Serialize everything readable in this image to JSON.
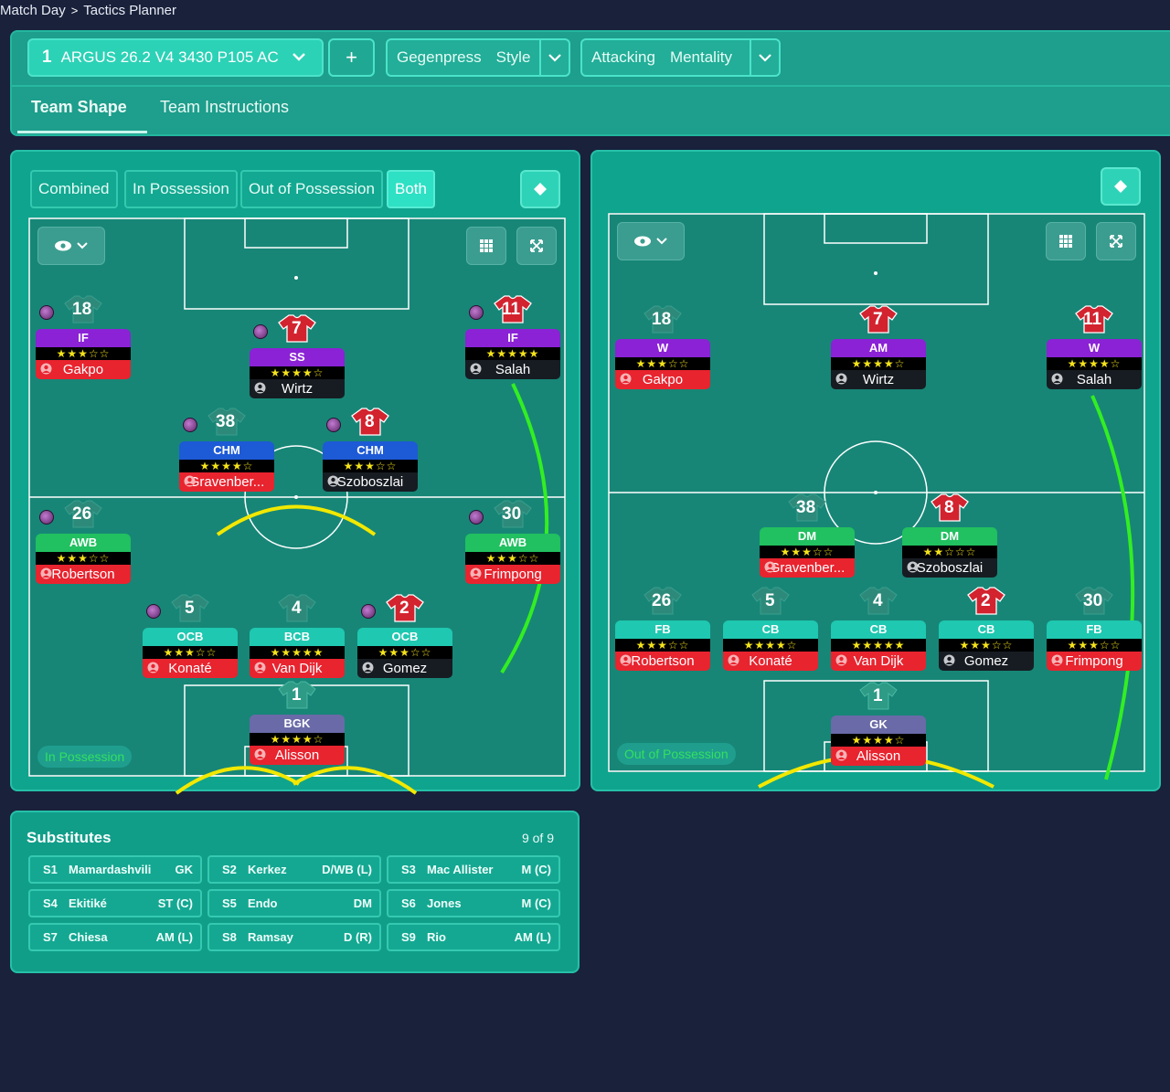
{
  "breadcrumb": {
    "parent": "Match Day",
    "current": "Tactics Planner"
  },
  "tactic": {
    "number": "1",
    "name": "ARGUS 26.2 V4 3430 P105 AC",
    "add_label": "+",
    "style_value": "Gegenpress",
    "style_label": "Style",
    "mentality_value": "Attacking",
    "mentality_label": "Mentality"
  },
  "tabs": [
    {
      "label": "Team Shape"
    },
    {
      "label": "Team Instructions"
    }
  ],
  "view_modes": [
    "Combined",
    "In Possession",
    "Out of Possession",
    "Both"
  ],
  "selected_view": "Both",
  "left_pitch": {
    "phase_label": "In Possession",
    "players": [
      {
        "num": "18",
        "role": "IF",
        "stars": "★★★☆☆",
        "name": "Gakpo",
        "role_color": "#8b22d6",
        "name_style": "red",
        "shirt": "grey",
        "dot": true
      },
      {
        "num": "7",
        "role": "SS",
        "stars": "★★★★☆",
        "name": "Wirtz",
        "role_color": "#8b22d6",
        "name_style": "blk",
        "shirt": "red",
        "dot": true
      },
      {
        "num": "11",
        "role": "IF",
        "stars": "★★★★★",
        "name": "Salah",
        "role_color": "#8b22d6",
        "name_style": "blk",
        "shirt": "red",
        "dot": true
      },
      {
        "num": "38",
        "role": "CHM",
        "stars": "★★★★☆",
        "name": "Gravenber...",
        "role_color": "#1d5ad6",
        "name_style": "red",
        "shirt": "grey",
        "dot": true
      },
      {
        "num": "8",
        "role": "CHM",
        "stars": "★★★☆☆",
        "name": "Szoboszlai",
        "role_color": "#1d5ad6",
        "name_style": "blk",
        "shirt": "red",
        "dot": true
      },
      {
        "num": "26",
        "role": "AWB",
        "stars": "★★★☆☆",
        "name": "Robertson",
        "role_color": "#21c060",
        "name_style": "red",
        "shirt": "grey",
        "dot": true
      },
      {
        "num": "30",
        "role": "AWB",
        "stars": "★★★☆☆",
        "name": "Frimpong",
        "role_color": "#21c060",
        "name_style": "red",
        "shirt": "grey",
        "dot": true
      },
      {
        "num": "5",
        "role": "OCB",
        "stars": "★★★☆☆",
        "name": "Konaté",
        "role_color": "#1fc8b0",
        "name_style": "red",
        "shirt": "grey",
        "dot": true
      },
      {
        "num": "4",
        "role": "BCB",
        "stars": "★★★★★",
        "name": "Van Dijk",
        "role_color": "#1fc8b0",
        "name_style": "red",
        "shirt": "grey",
        "dot": false
      },
      {
        "num": "2",
        "role": "OCB",
        "stars": "★★★☆☆",
        "name": "Gomez",
        "role_color": "#1fc8b0",
        "name_style": "blk",
        "shirt": "red",
        "dot": true
      },
      {
        "num": "1",
        "role": "BGK",
        "stars": "★★★★☆",
        "name": "Alisson",
        "role_color": "#6a6aa8",
        "name_style": "red",
        "shirt": "gk",
        "dot": false
      }
    ]
  },
  "right_pitch": {
    "phase_label": "Out of Possession",
    "players": [
      {
        "num": "18",
        "role": "W",
        "stars": "★★★☆☆",
        "name": "Gakpo",
        "role_color": "#8b22d6",
        "name_style": "red",
        "shirt": "grey"
      },
      {
        "num": "7",
        "role": "AM",
        "stars": "★★★★☆",
        "name": "Wirtz",
        "role_color": "#8b22d6",
        "name_style": "blk",
        "shirt": "red"
      },
      {
        "num": "11",
        "role": "W",
        "stars": "★★★★☆",
        "name": "Salah",
        "role_color": "#8b22d6",
        "name_style": "blk",
        "shirt": "red"
      },
      {
        "num": "38",
        "role": "DM",
        "stars": "★★★☆☆",
        "name": "Gravenber...",
        "role_color": "#21c060",
        "name_style": "red",
        "shirt": "grey"
      },
      {
        "num": "8",
        "role": "DM",
        "stars": "★★☆☆☆",
        "name": "Szoboszlai",
        "role_color": "#21c060",
        "name_style": "blk",
        "shirt": "red"
      },
      {
        "num": "26",
        "role": "FB",
        "stars": "★★★☆☆",
        "name": "Robertson",
        "role_color": "#1fc8b0",
        "name_style": "red",
        "shirt": "grey"
      },
      {
        "num": "5",
        "role": "CB",
        "stars": "★★★★☆",
        "name": "Konaté",
        "role_color": "#1fc8b0",
        "name_style": "red",
        "shirt": "grey"
      },
      {
        "num": "4",
        "role": "CB",
        "stars": "★★★★★",
        "name": "Van Dijk",
        "role_color": "#1fc8b0",
        "name_style": "red",
        "shirt": "grey"
      },
      {
        "num": "2",
        "role": "CB",
        "stars": "★★★☆☆",
        "name": "Gomez",
        "role_color": "#1fc8b0",
        "name_style": "blk",
        "shirt": "red"
      },
      {
        "num": "30",
        "role": "FB",
        "stars": "★★★☆☆",
        "name": "Frimpong",
        "role_color": "#1fc8b0",
        "name_style": "red",
        "shirt": "grey"
      },
      {
        "num": "1",
        "role": "GK",
        "stars": "★★★★☆",
        "name": "Alisson",
        "role_color": "#6a6aa8",
        "name_style": "red",
        "shirt": "gk"
      }
    ]
  },
  "substitutes": {
    "title": "Substitutes",
    "count": "9 of 9",
    "items": [
      {
        "slot": "S1",
        "name": "Mamardashvili",
        "pos": "GK"
      },
      {
        "slot": "S2",
        "name": "Kerkez",
        "pos": "D/WB (L)"
      },
      {
        "slot": "S3",
        "name": "Mac Allister",
        "pos": "M (C)"
      },
      {
        "slot": "S4",
        "name": "Ekitiké",
        "pos": "ST (C)"
      },
      {
        "slot": "S5",
        "name": "Endo",
        "pos": "DM"
      },
      {
        "slot": "S6",
        "name": "Jones",
        "pos": "M (C)"
      },
      {
        "slot": "S7",
        "name": "Chiesa",
        "pos": "AM (L)"
      },
      {
        "slot": "S8",
        "name": "Ramsay",
        "pos": "D (R)"
      },
      {
        "slot": "S9",
        "name": "Rio",
        "pos": "AM (L)"
      }
    ]
  }
}
